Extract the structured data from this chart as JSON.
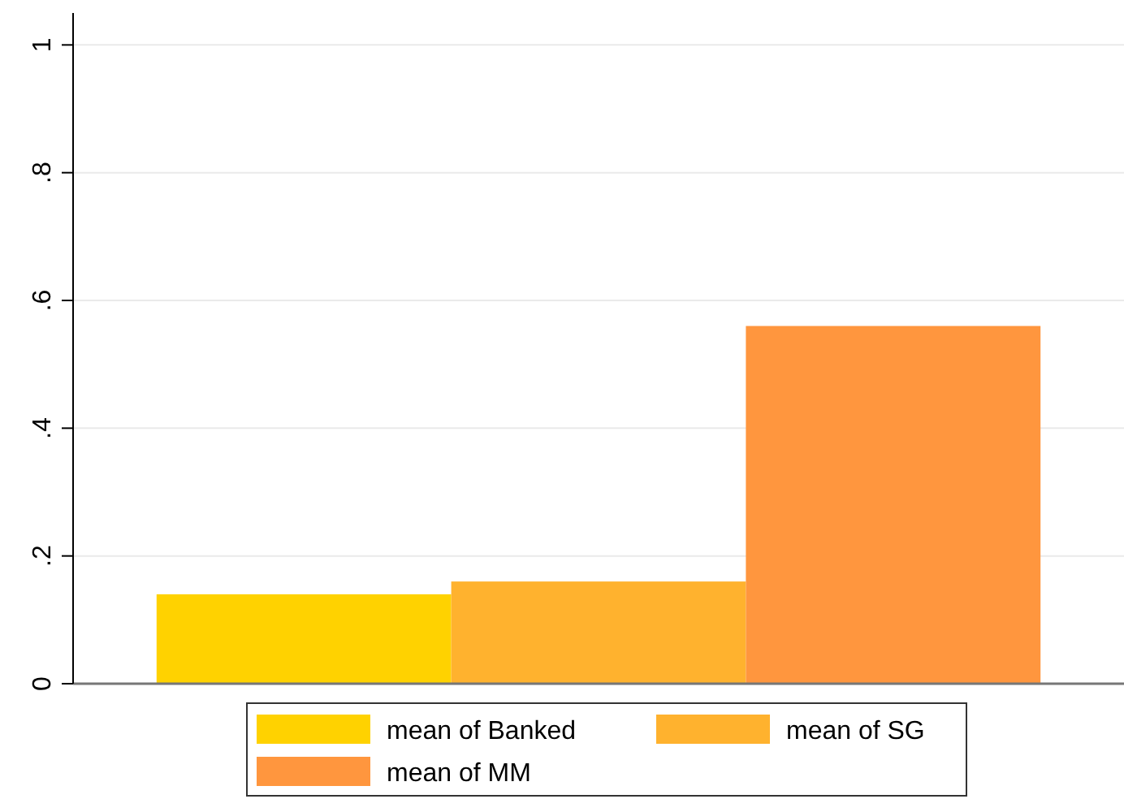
{
  "chart_data": {
    "type": "bar",
    "categories": [
      null
    ],
    "series": [
      {
        "name": "mean of Banked",
        "color": "#ffd200",
        "values": [
          0.14
        ]
      },
      {
        "name": "mean of SG",
        "color": "#ffb22e",
        "values": [
          0.16
        ]
      },
      {
        "name": "mean of MM",
        "color": "#ff963e",
        "values": [
          0.56
        ]
      }
    ],
    "ylim": [
      0,
      1.05
    ],
    "yticks": [
      {
        "value": 0,
        "label": "0"
      },
      {
        "value": 0.2,
        "label": ".2"
      },
      {
        "value": 0.4,
        "label": ".4"
      },
      {
        "value": 0.6,
        "label": ".6"
      },
      {
        "value": 0.8,
        "label": ".8"
      },
      {
        "value": 1,
        "label": "1"
      }
    ],
    "grid": "y",
    "legend": "bottom"
  }
}
